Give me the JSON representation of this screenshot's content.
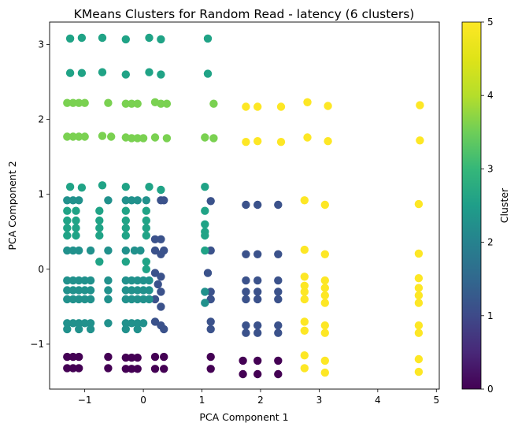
{
  "chart_data": {
    "type": "scatter",
    "title": "KMeans Clusters for Random Read - latency (6 clusters)",
    "xlabel": "PCA Component 1",
    "ylabel": "PCA Component 2",
    "xlim": [
      -1.6,
      5.05
    ],
    "ylim": [
      -1.6,
      3.3
    ],
    "x_ticks": [
      -1,
      0,
      1,
      2,
      3,
      4,
      5
    ],
    "y_ticks": [
      -1,
      0,
      1,
      2,
      3
    ],
    "x_tick_labels": [
      "−1",
      "0",
      "1",
      "2",
      "3",
      "4",
      "5"
    ],
    "y_tick_labels": [
      "−1",
      "0",
      "1",
      "2",
      "3"
    ],
    "grid": false,
    "colormap": "viridis",
    "colorbar": {
      "label": "Cluster",
      "min": 0,
      "max": 5,
      "ticks": [
        0,
        1,
        2,
        3,
        4,
        5
      ],
      "tick_labels": [
        "0",
        "1",
        "2",
        "3",
        "4",
        "5"
      ]
    },
    "cluster_colors": [
      "#440154",
      "#3b528b",
      "#21918c",
      "#20a386",
      "#7ad151",
      "#fde725"
    ],
    "series": [
      {
        "cluster": 0,
        "points": [
          [
            -1.3,
            -1.17
          ],
          [
            -1.2,
            -1.17
          ],
          [
            -1.1,
            -1.17
          ],
          [
            -1.3,
            -1.32
          ],
          [
            -1.2,
            -1.32
          ],
          [
            -1.1,
            -1.32
          ],
          [
            -0.6,
            -1.17
          ],
          [
            -0.6,
            -1.32
          ],
          [
            -0.3,
            -1.18
          ],
          [
            -0.2,
            -1.18
          ],
          [
            -0.1,
            -1.18
          ],
          [
            -0.3,
            -1.33
          ],
          [
            -0.2,
            -1.33
          ],
          [
            -0.1,
            -1.33
          ],
          [
            0.2,
            -1.17
          ],
          [
            0.35,
            -1.17
          ],
          [
            0.2,
            -1.33
          ],
          [
            0.35,
            -1.33
          ],
          [
            1.15,
            -1.17
          ],
          [
            1.15,
            -1.33
          ],
          [
            1.7,
            -1.22
          ],
          [
            1.7,
            -1.4
          ],
          [
            1.95,
            -1.22
          ],
          [
            1.95,
            -1.4
          ],
          [
            2.3,
            -1.22
          ],
          [
            2.3,
            -1.4
          ]
        ]
      },
      {
        "cluster": 1,
        "points": [
          [
            0.3,
            0.92
          ],
          [
            0.35,
            0.92
          ],
          [
            0.2,
            0.4
          ],
          [
            0.3,
            0.4
          ],
          [
            0.2,
            0.25
          ],
          [
            0.35,
            0.25
          ],
          [
            0.3,
            0.2
          ],
          [
            0.2,
            -0.05
          ],
          [
            0.3,
            -0.1
          ],
          [
            0.25,
            -0.2
          ],
          [
            0.3,
            -0.3
          ],
          [
            0.2,
            -0.4
          ],
          [
            0.3,
            -0.5
          ],
          [
            0.2,
            -0.7
          ],
          [
            0.3,
            -0.75
          ],
          [
            0.35,
            -0.8
          ],
          [
            1.15,
            0.91
          ],
          [
            1.15,
            0.25
          ],
          [
            1.1,
            -0.05
          ],
          [
            1.15,
            -0.3
          ],
          [
            1.15,
            -0.4
          ],
          [
            1.15,
            -0.7
          ],
          [
            1.15,
            -0.8
          ],
          [
            1.75,
            0.86
          ],
          [
            1.95,
            0.86
          ],
          [
            2.3,
            0.86
          ],
          [
            1.75,
            0.2
          ],
          [
            1.95,
            0.2
          ],
          [
            2.3,
            0.2
          ],
          [
            1.75,
            -0.15
          ],
          [
            1.95,
            -0.15
          ],
          [
            2.3,
            -0.15
          ],
          [
            1.75,
            -0.3
          ],
          [
            1.95,
            -0.3
          ],
          [
            2.3,
            -0.3
          ],
          [
            1.75,
            -0.4
          ],
          [
            1.95,
            -0.4
          ],
          [
            2.3,
            -0.4
          ],
          [
            1.75,
            -0.75
          ],
          [
            1.95,
            -0.75
          ],
          [
            2.3,
            -0.75
          ],
          [
            1.75,
            -0.85
          ],
          [
            1.95,
            -0.85
          ],
          [
            2.3,
            -0.85
          ]
        ]
      },
      {
        "cluster": 2,
        "points": [
          [
            -1.3,
            0.92
          ],
          [
            -1.2,
            0.92
          ],
          [
            -1.1,
            0.92
          ],
          [
            -0.6,
            0.92
          ],
          [
            -0.3,
            0.92
          ],
          [
            -0.2,
            0.92
          ],
          [
            -0.1,
            0.92
          ],
          [
            0.05,
            0.92
          ],
          [
            -1.3,
            0.25
          ],
          [
            -1.2,
            0.25
          ],
          [
            -1.1,
            0.25
          ],
          [
            -0.9,
            0.25
          ],
          [
            -0.6,
            0.25
          ],
          [
            -0.3,
            0.25
          ],
          [
            -0.15,
            0.25
          ],
          [
            -0.05,
            0.25
          ],
          [
            -1.3,
            -0.15
          ],
          [
            -1.2,
            -0.15
          ],
          [
            -1.1,
            -0.15
          ],
          [
            -1.0,
            -0.15
          ],
          [
            -0.9,
            -0.15
          ],
          [
            -0.6,
            -0.15
          ],
          [
            -0.3,
            -0.15
          ],
          [
            -0.2,
            -0.15
          ],
          [
            -0.1,
            -0.15
          ],
          [
            0.0,
            -0.15
          ],
          [
            0.1,
            -0.15
          ],
          [
            -1.3,
            -0.28
          ],
          [
            -1.2,
            -0.28
          ],
          [
            -1.1,
            -0.28
          ],
          [
            -1.0,
            -0.28
          ],
          [
            -0.9,
            -0.28
          ],
          [
            -0.6,
            -0.28
          ],
          [
            -0.3,
            -0.28
          ],
          [
            -0.2,
            -0.28
          ],
          [
            -0.1,
            -0.28
          ],
          [
            0.0,
            -0.28
          ],
          [
            0.1,
            -0.28
          ],
          [
            -1.3,
            -0.4
          ],
          [
            -1.2,
            -0.4
          ],
          [
            -1.1,
            -0.4
          ],
          [
            -1.0,
            -0.4
          ],
          [
            -0.9,
            -0.4
          ],
          [
            -0.6,
            -0.4
          ],
          [
            -0.3,
            -0.4
          ],
          [
            -0.2,
            -0.4
          ],
          [
            -0.1,
            -0.4
          ],
          [
            0.0,
            -0.4
          ],
          [
            0.1,
            -0.4
          ],
          [
            -1.3,
            -0.72
          ],
          [
            -1.2,
            -0.72
          ],
          [
            -1.1,
            -0.72
          ],
          [
            -1.0,
            -0.72
          ],
          [
            -0.9,
            -0.72
          ],
          [
            -0.6,
            -0.72
          ],
          [
            -0.3,
            -0.72
          ],
          [
            -0.2,
            -0.72
          ],
          [
            -0.1,
            -0.72
          ],
          [
            0.0,
            -0.72
          ],
          [
            -1.3,
            -0.8
          ],
          [
            -1.1,
            -0.8
          ],
          [
            -0.9,
            -0.8
          ],
          [
            -0.3,
            -0.8
          ],
          [
            -0.1,
            -0.8
          ],
          [
            1.05,
            -0.3
          ],
          [
            1.05,
            -0.45
          ]
        ]
      },
      {
        "cluster": 3,
        "points": [
          [
            -1.25,
            3.08
          ],
          [
            -1.05,
            3.09
          ],
          [
            -0.7,
            3.09
          ],
          [
            -0.3,
            3.07
          ],
          [
            0.1,
            3.09
          ],
          [
            0.3,
            3.07
          ],
          [
            1.1,
            3.08
          ],
          [
            -1.25,
            2.62
          ],
          [
            -1.05,
            2.62
          ],
          [
            -0.7,
            2.63
          ],
          [
            -0.3,
            2.6
          ],
          [
            0.1,
            2.63
          ],
          [
            0.3,
            2.6
          ],
          [
            1.1,
            2.61
          ],
          [
            -1.25,
            1.1
          ],
          [
            -1.05,
            1.09
          ],
          [
            -0.7,
            1.12
          ],
          [
            -0.3,
            1.1
          ],
          [
            0.1,
            1.1
          ],
          [
            0.3,
            1.06
          ],
          [
            1.05,
            1.1
          ],
          [
            -1.3,
            0.78
          ],
          [
            -1.15,
            0.78
          ],
          [
            -0.75,
            0.78
          ],
          [
            -0.3,
            0.78
          ],
          [
            0.05,
            0.78
          ],
          [
            1.05,
            0.78
          ],
          [
            -1.3,
            0.65
          ],
          [
            -1.15,
            0.65
          ],
          [
            -0.75,
            0.65
          ],
          [
            -0.3,
            0.65
          ],
          [
            0.05,
            0.65
          ],
          [
            -1.3,
            0.55
          ],
          [
            -1.15,
            0.55
          ],
          [
            -0.75,
            0.55
          ],
          [
            -0.3,
            0.55
          ],
          [
            0.05,
            0.55
          ],
          [
            1.05,
            0.6
          ],
          [
            -1.3,
            0.45
          ],
          [
            -1.15,
            0.45
          ],
          [
            -0.75,
            0.45
          ],
          [
            -0.3,
            0.45
          ],
          [
            0.05,
            0.45
          ],
          [
            1.05,
            0.5
          ],
          [
            -0.75,
            0.1
          ],
          [
            -0.3,
            0.1
          ],
          [
            0.05,
            0.1
          ],
          [
            0.05,
            0.0
          ],
          [
            1.05,
            0.45
          ],
          [
            1.05,
            0.25
          ]
        ]
      },
      {
        "cluster": 4,
        "points": [
          [
            -1.3,
            2.22
          ],
          [
            -1.2,
            2.22
          ],
          [
            -1.1,
            2.22
          ],
          [
            -1.0,
            2.22
          ],
          [
            -0.6,
            2.22
          ],
          [
            -0.3,
            2.21
          ],
          [
            -0.2,
            2.21
          ],
          [
            -0.1,
            2.21
          ],
          [
            0.2,
            2.23
          ],
          [
            0.3,
            2.21
          ],
          [
            0.4,
            2.21
          ],
          [
            1.2,
            2.21
          ],
          [
            -1.3,
            1.77
          ],
          [
            -1.2,
            1.77
          ],
          [
            -1.1,
            1.77
          ],
          [
            -1.0,
            1.77
          ],
          [
            -0.7,
            1.78
          ],
          [
            -0.55,
            1.77
          ],
          [
            -0.3,
            1.76
          ],
          [
            -0.2,
            1.75
          ],
          [
            -0.1,
            1.75
          ],
          [
            0.0,
            1.75
          ],
          [
            0.2,
            1.76
          ],
          [
            0.4,
            1.75
          ],
          [
            1.05,
            1.76
          ],
          [
            1.2,
            1.75
          ]
        ]
      },
      {
        "cluster": 5,
        "points": [
          [
            1.75,
            2.17
          ],
          [
            1.95,
            2.17
          ],
          [
            2.35,
            2.17
          ],
          [
            2.8,
            2.23
          ],
          [
            3.15,
            2.18
          ],
          [
            4.72,
            2.19
          ],
          [
            1.75,
            1.7
          ],
          [
            1.95,
            1.71
          ],
          [
            2.35,
            1.7
          ],
          [
            2.8,
            1.76
          ],
          [
            3.15,
            1.71
          ],
          [
            4.72,
            1.72
          ],
          [
            2.75,
            0.92
          ],
          [
            3.1,
            0.86
          ],
          [
            4.7,
            0.87
          ],
          [
            2.75,
            0.26
          ],
          [
            3.1,
            0.2
          ],
          [
            4.7,
            0.21
          ],
          [
            2.75,
            -0.1
          ],
          [
            3.1,
            -0.15
          ],
          [
            4.7,
            -0.12
          ],
          [
            2.75,
            -0.22
          ],
          [
            3.1,
            -0.25
          ],
          [
            4.7,
            -0.25
          ],
          [
            2.75,
            -0.3
          ],
          [
            3.1,
            -0.35
          ],
          [
            4.7,
            -0.35
          ],
          [
            2.75,
            -0.4
          ],
          [
            3.1,
            -0.45
          ],
          [
            4.7,
            -0.45
          ],
          [
            2.75,
            -0.7
          ],
          [
            3.1,
            -0.75
          ],
          [
            4.7,
            -0.75
          ],
          [
            2.75,
            -0.82
          ],
          [
            3.1,
            -0.85
          ],
          [
            4.7,
            -0.85
          ],
          [
            2.75,
            -1.15
          ],
          [
            3.1,
            -1.22
          ],
          [
            4.7,
            -1.2
          ],
          [
            2.75,
            -1.32
          ],
          [
            3.1,
            -1.38
          ],
          [
            4.7,
            -1.37
          ]
        ]
      }
    ]
  }
}
